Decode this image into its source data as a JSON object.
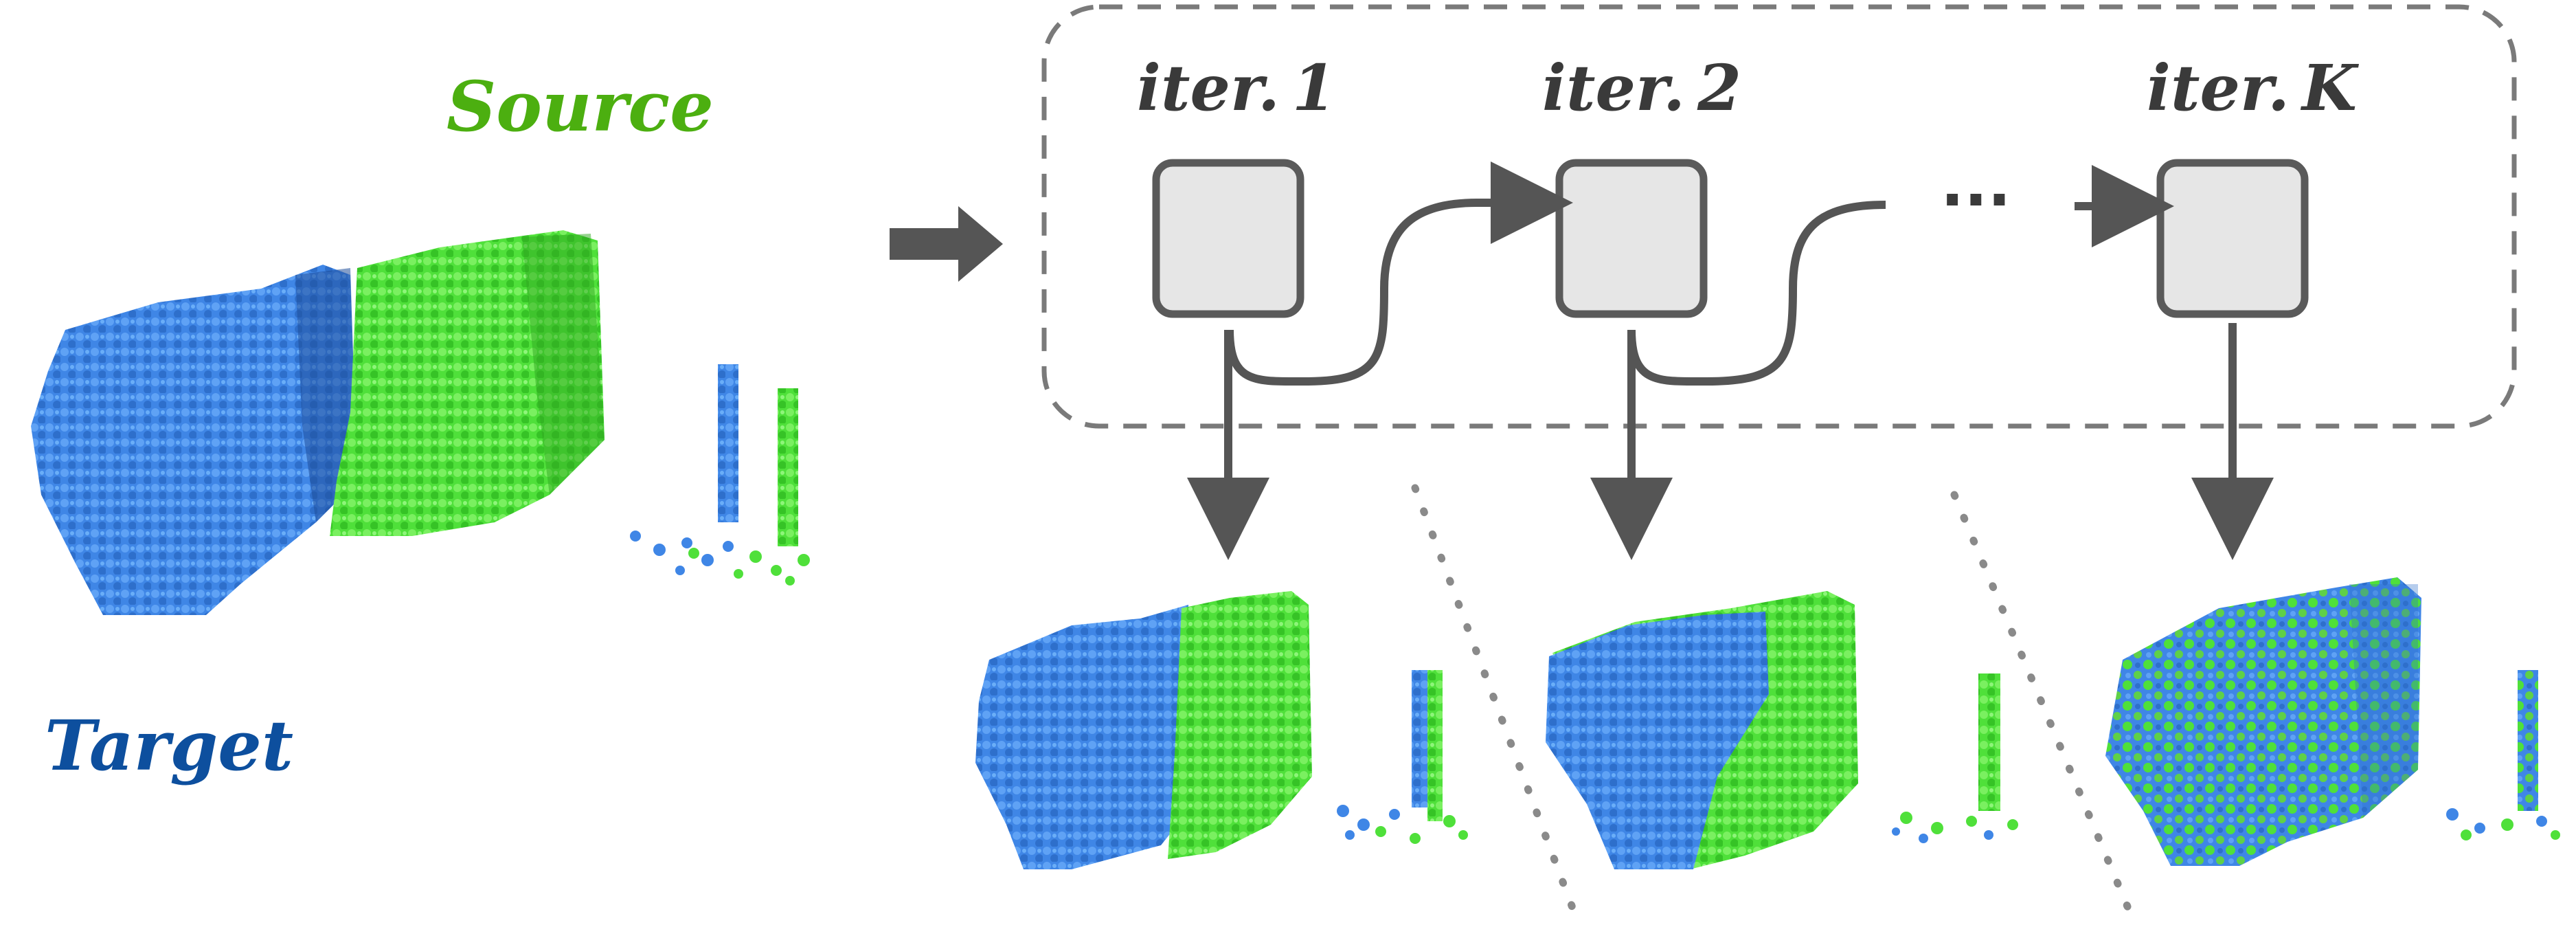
{
  "labels": {
    "source": "Source",
    "target": "Target",
    "iterations": [
      {
        "prefix": "iter.",
        "index": "1"
      },
      {
        "prefix": "iter.",
        "index": "2"
      },
      {
        "prefix": "iter.",
        "index": "K"
      }
    ],
    "ellipsis": "···"
  },
  "colors": {
    "source_green": "#4caf10",
    "target_blue": "#0d4f9e",
    "cloud_blue": "#3f86e6",
    "cloud_green": "#4fe03a",
    "box_fill": "#e6e6e6",
    "box_stroke": "#5a5a5a",
    "arrow": "#555555",
    "dashed": "#7a7a7a"
  },
  "alignment_results": [
    {
      "stage": "iter. 1",
      "overlap": "low"
    },
    {
      "stage": "iter. 2",
      "overlap": "partial"
    },
    {
      "stage": "iter. K",
      "overlap": "full"
    }
  ]
}
